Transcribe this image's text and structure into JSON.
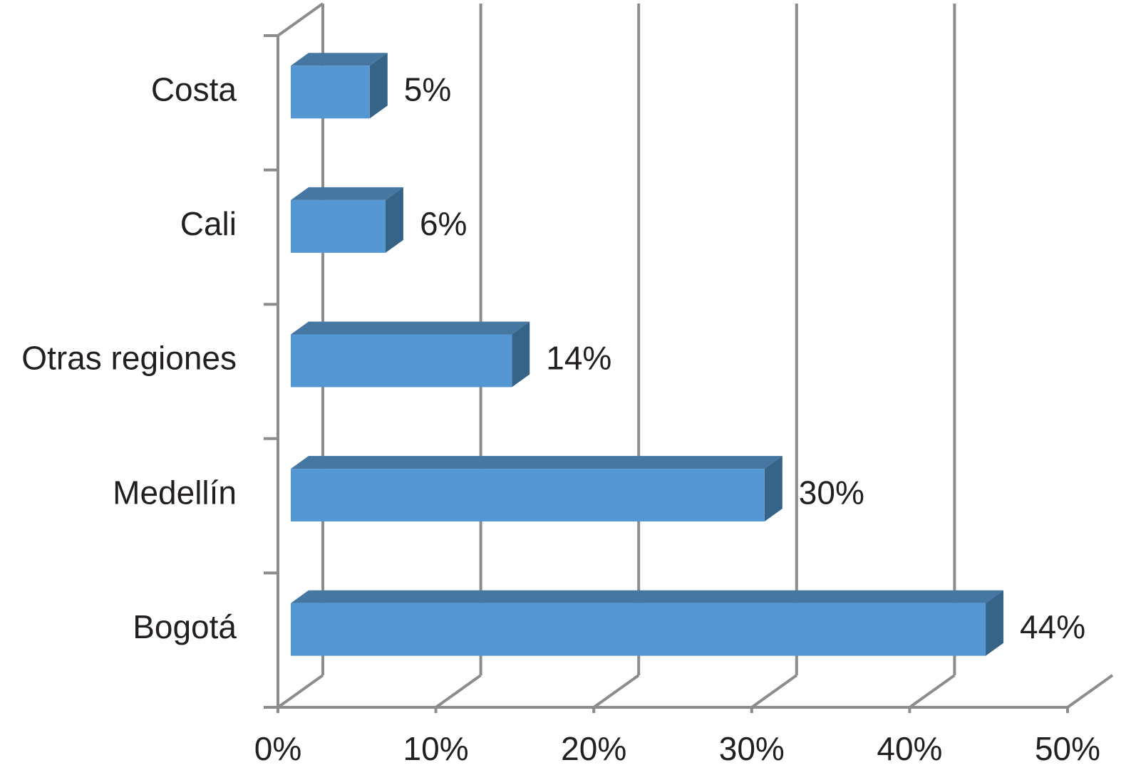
{
  "chart_data": {
    "type": "bar3d",
    "categories": [
      "Costa",
      "Cali",
      "Otras regiones",
      "Medellín",
      "Bogotá"
    ],
    "values": [
      5,
      6,
      14,
      30,
      44
    ],
    "value_labels": [
      "5%",
      "6%",
      "14%",
      "30%",
      "44%"
    ],
    "color": "#5597d3",
    "xlim": [
      0,
      50
    ],
    "xticks": [
      {
        "value": 0,
        "label": "0%"
      },
      {
        "value": 10,
        "label": "10%"
      },
      {
        "value": 20,
        "label": "20%"
      },
      {
        "value": 30,
        "label": "30%"
      },
      {
        "value": 40,
        "label": "40%"
      },
      {
        "value": 50,
        "label": "50%"
      }
    ],
    "grid": true
  }
}
